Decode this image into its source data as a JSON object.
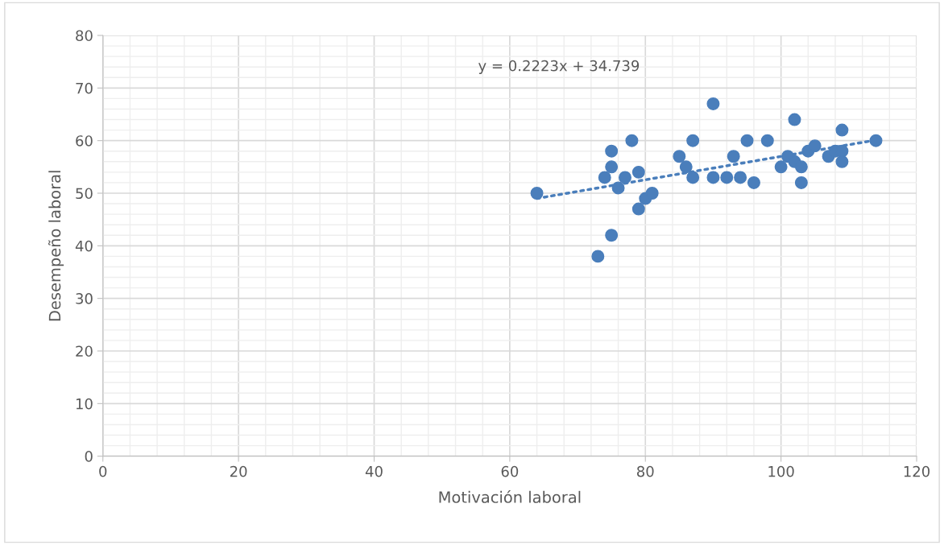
{
  "chart_data": {
    "type": "scatter",
    "xlabel": "Motivación laboral",
    "ylabel": "Desempeño laboral",
    "annotations": [
      "y = 0.2223x + 34.739"
    ],
    "xlim": [
      0,
      120
    ],
    "xticks": [
      0,
      20,
      40,
      60,
      80,
      100,
      120
    ],
    "ylim": [
      0,
      80
    ],
    "yticks": [
      0,
      10,
      20,
      30,
      40,
      50,
      60,
      70,
      80
    ],
    "grid": true,
    "legend": false,
    "series": [
      {
        "marker": "circle",
        "color": "#4a7ebb",
        "x": [
          64,
          73,
          74,
          75,
          75,
          75,
          76,
          77,
          78,
          79,
          79,
          80,
          81,
          85,
          86,
          87,
          87,
          90,
          90,
          92,
          93,
          94,
          95,
          96,
          98,
          100,
          101,
          102,
          102,
          103,
          103,
          104,
          105,
          107,
          108,
          109,
          109,
          109,
          114
        ],
        "values": [
          50,
          38,
          53,
          58,
          55,
          42,
          51,
          53,
          60,
          54,
          47,
          49,
          50,
          57,
          55,
          60,
          53,
          67,
          53,
          53,
          57,
          53,
          60,
          52,
          60,
          55,
          57,
          64,
          56,
          55,
          52,
          58,
          59,
          57,
          58,
          62,
          58,
          56,
          60
        ]
      },
      {
        "type": "line",
        "color": "#4a7ebb",
        "line_style": "dotted",
        "x": [
          64,
          114
        ],
        "values": [
          49.0,
          60.1
        ]
      }
    ]
  }
}
